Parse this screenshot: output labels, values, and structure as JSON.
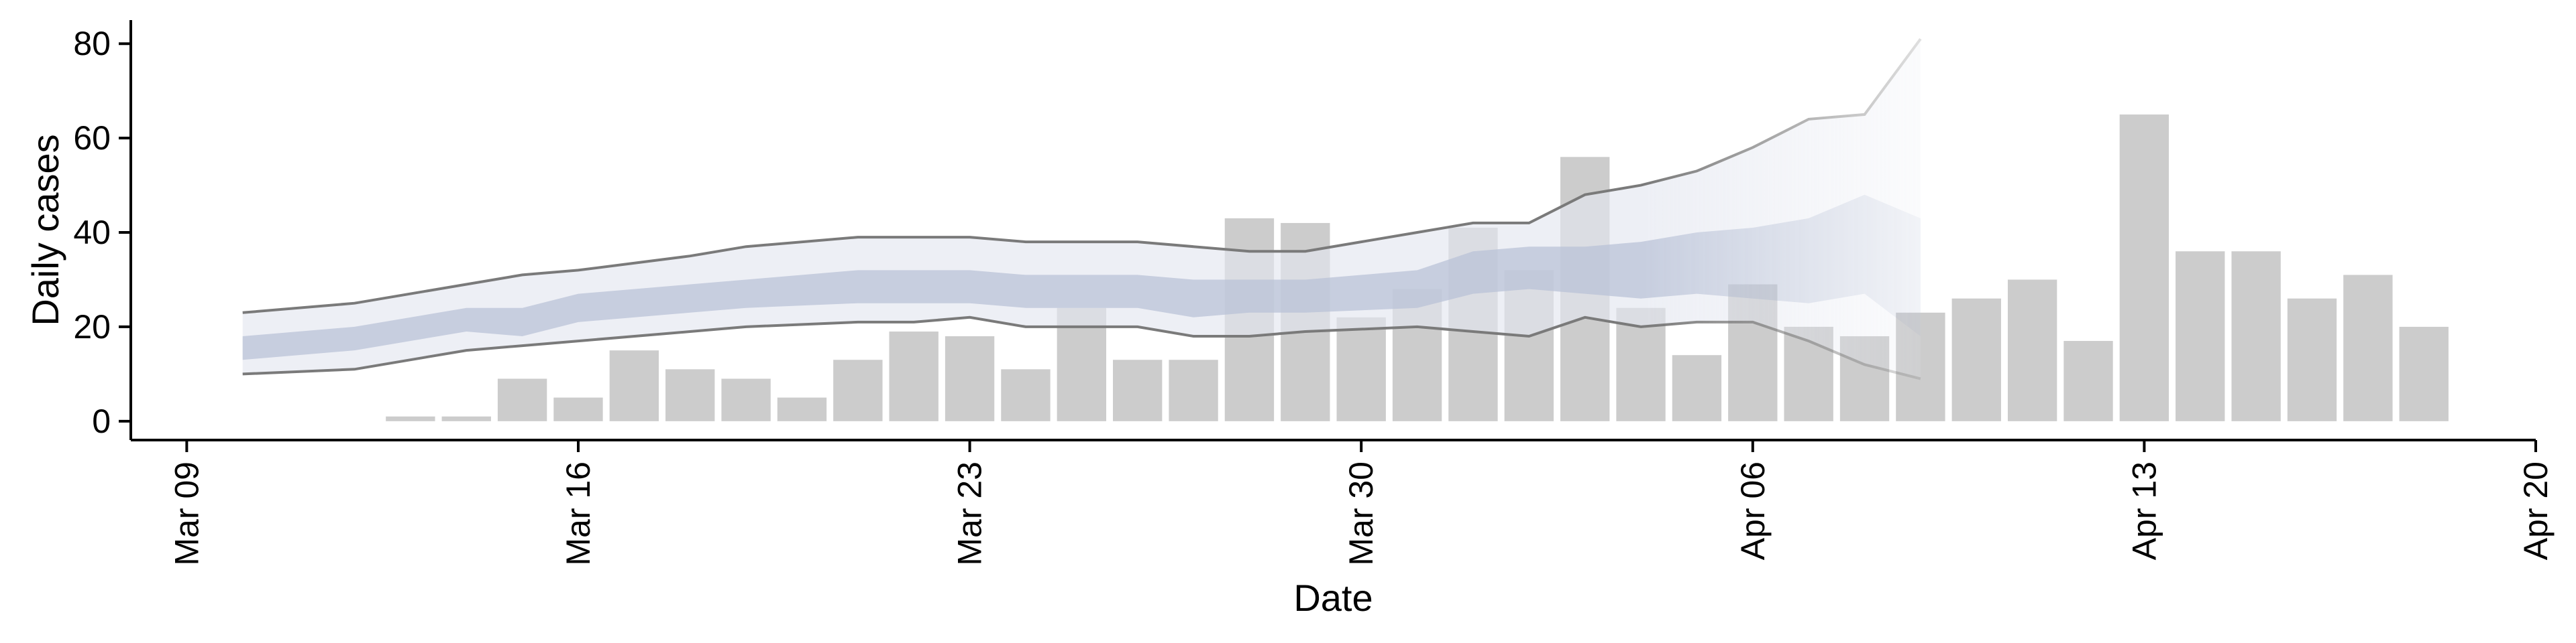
{
  "chart_data": {
    "type": "bar",
    "title": "",
    "xlabel": "Date",
    "ylabel": "Daily cases",
    "ylim": [
      -4,
      85
    ],
    "yticks": [
      0,
      20,
      40,
      60,
      80
    ],
    "xlim": [
      "2020-03-08",
      "2020-04-20"
    ],
    "xticks": [
      {
        "date": "2020-03-09",
        "label": "Mar 09"
      },
      {
        "date": "2020-03-16",
        "label": "Mar 16"
      },
      {
        "date": "2020-03-23",
        "label": "Mar 23"
      },
      {
        "date": "2020-03-30",
        "label": "Mar 30"
      },
      {
        "date": "2020-04-06",
        "label": "Apr 06"
      },
      {
        "date": "2020-04-13",
        "label": "Apr 13"
      },
      {
        "date": "2020-04-20",
        "label": "Apr 20"
      }
    ],
    "grid": false,
    "bars": {
      "color": "#cccccc",
      "dates": [
        "2020-03-13",
        "2020-03-14",
        "2020-03-15",
        "2020-03-16",
        "2020-03-17",
        "2020-03-18",
        "2020-03-19",
        "2020-03-20",
        "2020-03-21",
        "2020-03-22",
        "2020-03-23",
        "2020-03-24",
        "2020-03-25",
        "2020-03-26",
        "2020-03-27",
        "2020-03-28",
        "2020-03-29",
        "2020-03-30",
        "2020-03-31",
        "2020-04-01",
        "2020-04-02",
        "2020-04-03",
        "2020-04-04",
        "2020-04-05",
        "2020-04-06",
        "2020-04-07",
        "2020-04-08",
        "2020-04-09",
        "2020-04-10",
        "2020-04-11",
        "2020-04-12",
        "2020-04-13",
        "2020-04-14",
        "2020-04-15",
        "2020-04-16",
        "2020-04-17",
        "2020-04-18"
      ],
      "values": [
        1,
        1,
        9,
        5,
        15,
        11,
        9,
        5,
        13,
        19,
        18,
        11,
        24,
        13,
        13,
        43,
        42,
        22,
        28,
        41,
        32,
        56,
        24,
        14,
        29,
        20,
        18,
        23,
        26,
        30,
        17,
        65,
        36,
        36,
        26,
        31,
        20
      ]
    },
    "bands": {
      "dates": [
        "2020-03-10",
        "2020-03-12",
        "2020-03-14",
        "2020-03-15",
        "2020-03-16",
        "2020-03-18",
        "2020-03-19",
        "2020-03-21",
        "2020-03-22",
        "2020-03-23",
        "2020-03-24",
        "2020-03-26",
        "2020-03-27",
        "2020-03-28",
        "2020-03-29",
        "2020-03-31",
        "2020-04-01",
        "2020-04-02",
        "2020-04-03",
        "2020-04-04",
        "2020-04-05",
        "2020-04-06",
        "2020-04-07",
        "2020-04-08",
        "2020-04-09"
      ],
      "outer_upper": [
        23,
        25,
        29,
        31,
        32,
        35,
        37,
        39,
        39,
        39,
        38,
        38,
        37,
        36,
        36,
        40,
        42,
        42,
        48,
        50,
        53,
        58,
        64,
        65,
        81
      ],
      "outer_lower": [
        10,
        11,
        15,
        16,
        17,
        19,
        20,
        21,
        21,
        22,
        20,
        20,
        18,
        18,
        19,
        20,
        19,
        18,
        22,
        20,
        21,
        21,
        17,
        12,
        9
      ],
      "inner_upper": [
        18,
        20,
        24,
        24,
        27,
        29,
        30,
        32,
        32,
        32,
        31,
        31,
        30,
        30,
        30,
        32,
        36,
        37,
        37,
        38,
        40,
        41,
        43,
        48,
        43
      ],
      "inner_lower": [
        13,
        15,
        19,
        18,
        21,
        23,
        24,
        25,
        25,
        25,
        24,
        24,
        22,
        23,
        23,
        24,
        27,
        28,
        27,
        26,
        27,
        26,
        25,
        27,
        18
      ],
      "outer_color": "#e3e6ef",
      "inner_color": "#b6bfd6",
      "line_color": "#7a7a7a"
    }
  }
}
